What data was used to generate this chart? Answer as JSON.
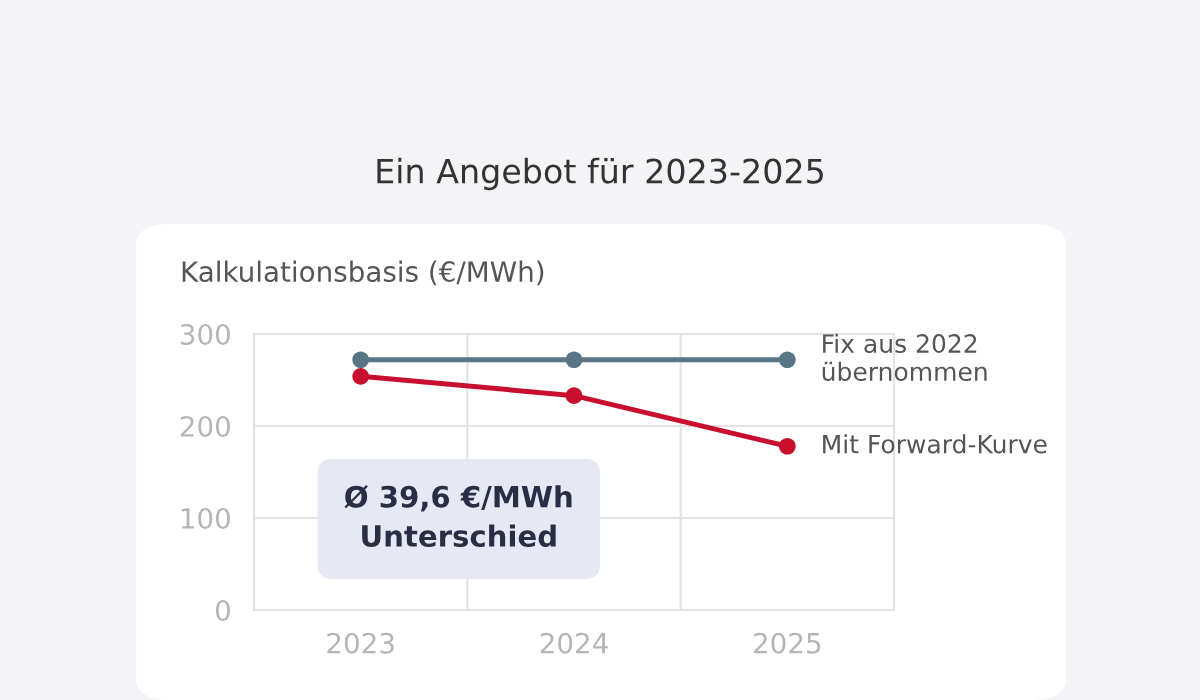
{
  "chart_data": {
    "type": "line",
    "title": "Ein Angebot für 2023-2025",
    "ylabel": "Kalkulationsbasis (€/MWh)",
    "categories": [
      "2023",
      "2024",
      "2025"
    ],
    "series": [
      {
        "name": "Fix aus 2022\nübernommen",
        "color": "#587686",
        "values": [
          272,
          272,
          272
        ]
      },
      {
        "name": "Mit Forward-Kurve",
        "color": "#c8102e",
        "values": [
          254,
          233,
          178
        ]
      }
    ],
    "ylim": [
      0,
      300
    ],
    "yticks": [
      0,
      100,
      200,
      300
    ],
    "grid": true,
    "marker": "circle",
    "line_style": "solid",
    "annotations": [
      "Ø 39,6 €/MWh\nUnterschied"
    ]
  }
}
